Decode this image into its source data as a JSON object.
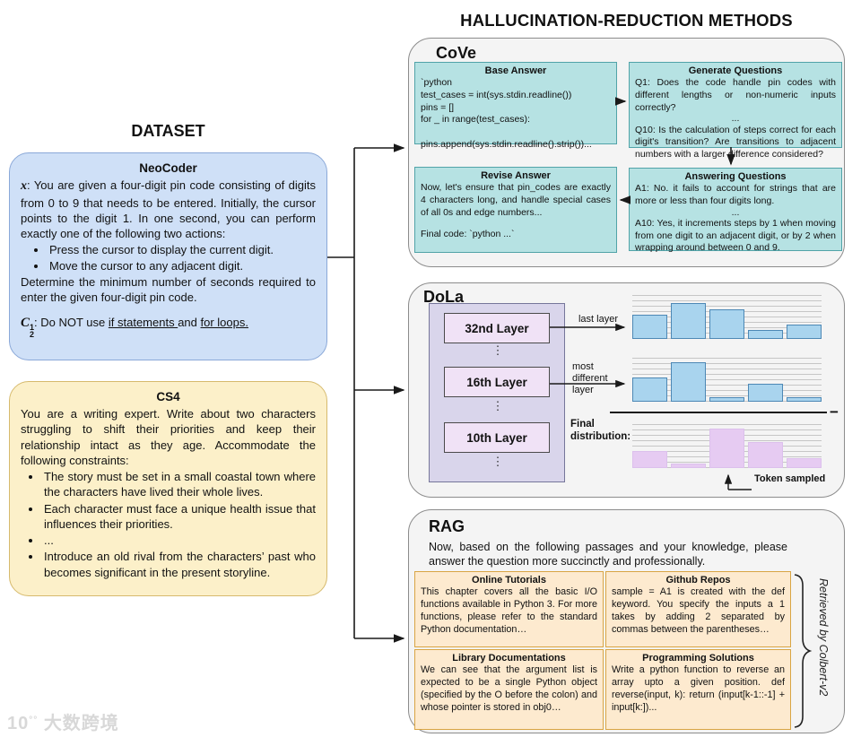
{
  "title": "HALLUCINATION-REDUCTION METHODS",
  "dataset": {
    "heading": "DATASET",
    "neocoder": {
      "name": "NeoCoder",
      "x_symbol": "x",
      "intro": ": You are given a four-digit pin code consisting of digits from 0 to 9 that needs to be entered. Initially, the cursor points to the digit 1. In one second, you can perform exactly one of the following two actions:",
      "bullets": [
        "Press the cursor to display the current digit.",
        "Move the cursor to any adjacent digit."
      ],
      "outro": "Determine the minimum number of seconds required to enter the given four-digit pin code.",
      "constraint": {
        "c_symbol": "C",
        "c_sup": "1",
        "c_sub": "2",
        "prefix": ": Do NOT use ",
        "underlined1": "if statements ",
        "mid": "and ",
        "underlined2": "for loops."
      }
    },
    "cs4": {
      "name": "CS4",
      "intro": "You are a writing expert. Write about two characters struggling to shift their priorities and keep their relationship intact as they age. Accommodate the following constraints:",
      "bullets": [
        "The story must be set in a small coastal town where the characters have lived their whole lives.",
        "Each character must face a unique health issue that influences their priorities.",
        "...",
        "Introduce an old rival from the characters’ past who becomes significant in the present storyline."
      ]
    }
  },
  "cove": {
    "name": "CoVe",
    "base_answer": {
      "title": "Base Answer",
      "lines": [
        "`python",
        "test_cases = int(sys.stdin.readline())",
        "pins = []",
        "for _ in range(test_cases):",
        "        pins.append(sys.stdin.readline().strip())..."
      ]
    },
    "generate_questions": {
      "title": "Generate Questions",
      "q1": "Q1: Does the code handle pin codes with different lengths or non-numeric inputs correctly?",
      "dots": "...",
      "q10": "Q10:  Is the calculation of steps correct for each digit's transition? Are transitions to adjacent numbers with a larger difference considered?"
    },
    "answering_questions": {
      "title": "Answering Questions",
      "a1": "A1: No. it fails to account for strings that are more or less than four digits long.",
      "dots": "...",
      "a10": "A10: Yes, it increments steps by 1 when moving from one digit to an adjacent digit, or by 2 when wrapping around between 0 and 9."
    },
    "revise_answer": {
      "title": "Revise Answer",
      "p1": "Now, let's ensure that pin_codes are exactly 4 characters long, and handle special cases of all 0s and edge numbers...",
      "p2": "Final code: `python ...`"
    }
  },
  "dola": {
    "name": "DoLa",
    "layers": [
      "32nd Layer",
      "16th Layer",
      "10th Layer"
    ],
    "dots": "⋮",
    "last_layer_label": "last layer",
    "most_different_label": "most\ndifferent\nlayer",
    "final_distribution_label": "Final\ndistribution:",
    "minus": "−",
    "token_sampled_label": "Token sampled"
  },
  "rag": {
    "name": "RAG",
    "intro": "Now, based on the following passages and your knowledge, please answer the question more succinctly and professionally.",
    "boxes": [
      {
        "title": "Online Tutorials",
        "text": "This chapter covers all the basic I/O functions available in Python 3. For more functions, please refer to the standard Python documentation…"
      },
      {
        "title": "Github Repos",
        "text": "sample = A1 is created with the def keyword. You specify the inputs a 1 takes by adding 2 separated by commas between the parentheses…"
      },
      {
        "title": "Library Documentations",
        "text": "We can see that the argument list is expected to be a single Python object (specified by the O before the colon) and whose pointer is stored in obj0…"
      },
      {
        "title": "Programming Solutions",
        "text": "Write a python function to reverse an array upto a given position. def reverse(input, k): return (input[k-1::-1] + input[k:])..."
      }
    ],
    "retrieved_label": "Retrieved by Colbert-v2"
  },
  "chart_data": [
    {
      "type": "bar",
      "name": "last_layer_distribution",
      "values": [
        0.54,
        0.8,
        0.66,
        0.2,
        0.33
      ],
      "fill": "#a9d4ee",
      "stroke": "#4d88b5"
    },
    {
      "type": "bar",
      "name": "most_different_layer_distribution",
      "values": [
        0.53,
        0.86,
        0.1,
        0.39,
        0.1
      ],
      "fill": "#a9d4ee",
      "stroke": "#4d88b5"
    },
    {
      "type": "bar",
      "name": "final_distribution",
      "values": [
        0.39,
        0.1,
        0.9,
        0.59,
        0.22
      ],
      "fill": "#e6cbf2",
      "stroke": "#dcc0ec",
      "annotation": "Token sampled"
    }
  ],
  "watermark": {
    "mark": "10",
    "mark_sup": "°°",
    "text": "大数跨境"
  },
  "colors": {
    "neocoder_fill": "#cfe0f7",
    "neocoder_border": "#8aa8d8",
    "cs4_fill": "#fcf0c9",
    "cs4_border": "#d6ba6d",
    "panel_fill": "#f4f4f4",
    "panel_border": "#8c8c8c",
    "cove_box_fill": "#b6e2e3",
    "cove_box_border": "#51a3a8",
    "dola_container_fill": "#d9d5eb",
    "layer_box_fill": "#f0e2f6",
    "rag_box_fill": "#fdeacf",
    "rag_box_border": "#d9a544",
    "blue_bar": "#a9d4ee",
    "purple_bar": "#e6cbf2",
    "arrow": "#1a1a1a"
  }
}
